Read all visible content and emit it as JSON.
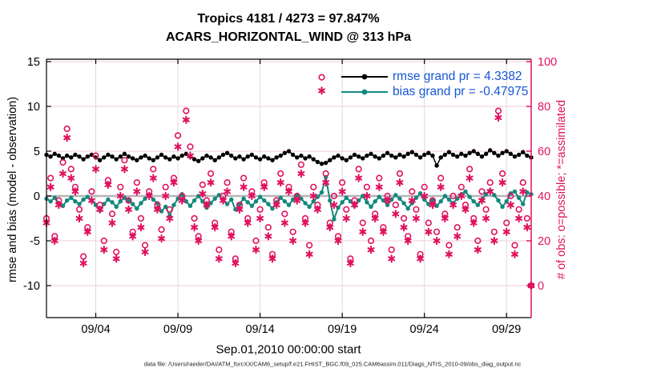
{
  "title": {
    "line1": "Tropics 4181 / 4273 = 97.847%",
    "line2": "ACARS_HORIZONTAL_WIND @ 313 hPa"
  },
  "legend": {
    "items": [
      {
        "series": "rmse",
        "label": "rmse grand pr = 4.3382"
      },
      {
        "series": "bias",
        "label": "bias grand pr = -0.47975"
      }
    ]
  },
  "axes": {
    "xlabel": "Sep.01,2010 00:00:00 start",
    "ylabel_left": "rmse and bias (model - observation)",
    "ylabel_right": "# of obs: o=possible; *=assimilated",
    "x_ticks": [
      {
        "label": "09/04",
        "day": 3
      },
      {
        "label": "09/09",
        "day": 8
      },
      {
        "label": "09/14",
        "day": 13
      },
      {
        "label": "09/19",
        "day": 18
      },
      {
        "label": "09/24",
        "day": 23
      },
      {
        "label": "09/29",
        "day": 28
      }
    ],
    "left_ticks": [
      15,
      10,
      5,
      0,
      -5,
      -10
    ],
    "right_ticks": [
      100,
      80,
      60,
      40,
      20,
      0
    ]
  },
  "caption": "data file: /Users/raeder/DAI/ATM_forcXX/CAM6_setup/f.e21.FHIST_BGC.f09_025.CAM6assim.011/Diags_NTrS_2010-09/obs_diag_output.nc",
  "colors": {
    "rmse": "#000000",
    "bias": "#12897d",
    "obs": "#e0115f",
    "legend_text": "#1556d4",
    "grid_vertical": "#dcdcdc",
    "grid_horizontal": "#f2cdd8",
    "zero_line": "#b5b5b5",
    "axis": "#000000"
  },
  "chart_data": {
    "type": "line",
    "time_step_days": 0.25,
    "x_span_days": 29.5,
    "x_start": "Sep.01,2010 00:00:00",
    "ylim_left": [
      -13.6,
      15.3
    ],
    "ylim_right": [
      -14.5,
      101.5
    ],
    "grand_rmse": 4.3382,
    "grand_bias": -0.47975,
    "obs_possible_total": 4273,
    "obs_assimilated_total": 4181,
    "obs_assimilated_pct": 97.847,
    "series": [
      {
        "name": "rmse",
        "axis": "left",
        "marker": "dot",
        "values": [
          4.6,
          4.4,
          4.7,
          4.5,
          4.2,
          4.5,
          4.3,
          4.6,
          4.4,
          4.1,
          4.4,
          4.6,
          4.3,
          4.0,
          4.3,
          4.6,
          4.4,
          4.1,
          4.4,
          4.7,
          4.4,
          4.2,
          4.0,
          4.3,
          4.5,
          4.2,
          4.0,
          4.3,
          4.6,
          4.3,
          4.1,
          4.4,
          4.2,
          4.5,
          4.7,
          4.4,
          4.1,
          3.9,
          4.2,
          4.5,
          4.3,
          4.0,
          4.3,
          4.6,
          4.8,
          4.5,
          4.2,
          4.4,
          4.1,
          4.4,
          4.6,
          4.3,
          4.1,
          4.4,
          4.2,
          4.0,
          4.3,
          4.5,
          4.8,
          5.0,
          4.6,
          4.3,
          4.5,
          4.2,
          4.4,
          4.1,
          3.8,
          3.6,
          3.7,
          4.0,
          4.3,
          4.5,
          4.2,
          4.0,
          4.3,
          4.6,
          4.4,
          4.2,
          4.5,
          4.7,
          4.4,
          4.2,
          4.5,
          4.8,
          4.5,
          4.3,
          4.6,
          4.4,
          4.7,
          4.9,
          4.6,
          4.3,
          4.6,
          4.8,
          4.5,
          3.4,
          4.3,
          4.6,
          4.9,
          4.6,
          4.4,
          4.7,
          4.5,
          4.8,
          5.0,
          4.7,
          4.4,
          4.7,
          5.1,
          4.8,
          4.5,
          4.8,
          5.0,
          4.7,
          4.4,
          4.6,
          4.9,
          4.5,
          4.3
        ]
      },
      {
        "name": "bias",
        "axis": "left",
        "marker": "dot",
        "values": [
          -0.3,
          -0.6,
          -0.2,
          -0.8,
          -1.1,
          -0.5,
          -0.2,
          -0.6,
          -0.9,
          -0.4,
          -0.1,
          -0.5,
          -1.0,
          -1.6,
          -0.9,
          -0.4,
          -0.7,
          -1.2,
          -0.6,
          -0.2,
          -0.5,
          -0.9,
          -1.4,
          -0.8,
          -0.3,
          0.1,
          -0.4,
          -0.8,
          -1.7,
          -1.2,
          -2.2,
          -1.0,
          -0.3,
          0.2,
          -0.6,
          -1.1,
          -0.5,
          0.0,
          -0.6,
          -1.3,
          -0.8,
          -0.3,
          0.1,
          -0.5,
          -0.9,
          -0.4,
          -1.5,
          -0.9,
          -0.3,
          -0.7,
          -1.1,
          -0.6,
          -0.1,
          -0.5,
          -0.9,
          -1.4,
          -0.7,
          -0.2,
          -0.6,
          -1.0,
          -0.4,
          0.1,
          -0.3,
          -0.8,
          -1.2,
          -0.6,
          -0.1,
          0.4,
          2.1,
          -0.5,
          -2.6,
          -1.3,
          -0.7,
          -0.2,
          -0.6,
          -1.1,
          -0.5,
          0.0,
          -0.7,
          -1.2,
          -0.6,
          -0.1,
          -0.5,
          -1.0,
          -0.4,
          0.1,
          -0.3,
          -0.8,
          -1.4,
          -0.8,
          -0.2,
          0.3,
          -0.4,
          -0.9,
          -0.5,
          -1.1,
          -0.6,
          0.0,
          -0.4,
          -0.8,
          -0.3,
          0.2,
          0.5,
          -0.1,
          -0.6,
          -1.0,
          -0.4,
          0.2,
          0.6,
          0.1,
          -0.5,
          -1.2,
          -0.6,
          0.3,
          0.5,
          -0.2,
          -0.9,
          0.4,
          0.2
        ]
      },
      {
        "name": "N_possible",
        "axis": "right",
        "marker": "circle",
        "values": [
          30,
          48,
          22,
          38,
          55,
          70,
          52,
          44,
          34,
          13,
          26,
          42,
          58,
          36,
          20,
          47,
          32,
          15,
          44,
          56,
          38,
          24,
          46,
          30,
          18,
          42,
          52,
          36,
          25,
          44,
          34,
          48,
          67,
          40,
          78,
          62,
          30,
          22,
          45,
          38,
          50,
          28,
          16,
          40,
          46,
          24,
          12,
          36,
          48,
          30,
          42,
          20,
          34,
          46,
          26,
          14,
          38,
          50,
          32,
          44,
          24,
          40,
          54,
          30,
          18,
          44,
          36,
          93,
          50,
          28,
          40,
          22,
          46,
          34,
          12,
          38,
          52,
          28,
          44,
          20,
          32,
          48,
          26,
          40,
          16,
          36,
          50,
          30,
          22,
          42,
          34,
          14,
          44,
          28,
          38,
          24,
          48,
          32,
          18,
          40,
          26,
          44,
          36,
          52,
          30,
          20,
          42,
          34,
          46,
          24,
          78,
          50,
          28,
          40,
          18,
          34,
          46,
          30,
          0
        ]
      },
      {
        "name": "N_assimilated",
        "axis": "right",
        "marker": "asterisk",
        "values": [
          28,
          44,
          20,
          36,
          50,
          66,
          48,
          42,
          30,
          10,
          24,
          38,
          52,
          34,
          16,
          45,
          28,
          12,
          40,
          52,
          34,
          22,
          42,
          26,
          15,
          40,
          48,
          34,
          21,
          40,
          30,
          46,
          62,
          38,
          74,
          58,
          26,
          20,
          41,
          36,
          46,
          26,
          12,
          38,
          42,
          22,
          10,
          34,
          44,
          28,
          40,
          16,
          30,
          44,
          22,
          12,
          36,
          46,
          28,
          42,
          20,
          38,
          50,
          28,
          14,
          40,
          34,
          87,
          46,
          26,
          36,
          20,
          42,
          30,
          10,
          36,
          48,
          24,
          40,
          16,
          30,
          44,
          24,
          38,
          12,
          32,
          46,
          26,
          20,
          38,
          30,
          12,
          40,
          24,
          36,
          20,
          44,
          30,
          14,
          36,
          22,
          40,
          34,
          48,
          28,
          16,
          38,
          30,
          42,
          20,
          75,
          46,
          24,
          36,
          14,
          30,
          42,
          26,
          0
        ]
      }
    ]
  }
}
